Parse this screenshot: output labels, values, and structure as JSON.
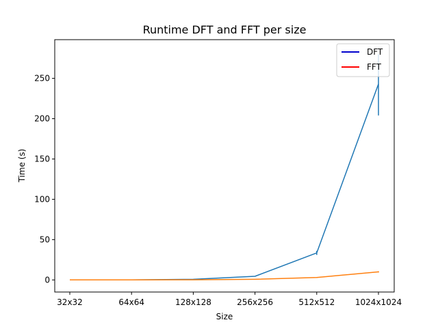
{
  "chart_data": {
    "type": "line",
    "title": "Runtime DFT and FFT per size",
    "xlabel": "Size",
    "ylabel": "Time (s)",
    "categories": [
      "32x32",
      "64x64",
      "128x128",
      "256x256",
      "512x512",
      "1024x1024"
    ],
    "ylim": [
      -15,
      298
    ],
    "yticks": [
      0,
      50,
      100,
      150,
      200,
      250
    ],
    "grid": false,
    "legend_position": "top-right",
    "legend": [
      {
        "label": "DFT",
        "color": "#0000cc"
      },
      {
        "label": "FFT",
        "color": "#ff0000"
      }
    ],
    "series": [
      {
        "name": "DFT",
        "color": "#1f77b4",
        "values": [
          0.02,
          0.1,
          0.8,
          4.5,
          33.5,
          243
        ],
        "error_low": [
          0.02,
          0.1,
          0.8,
          4.5,
          31,
          204
        ],
        "error_high": [
          0.02,
          0.1,
          0.8,
          4.5,
          36,
          280
        ]
      },
      {
        "name": "FFT",
        "color": "#ff7f0e",
        "values": [
          0.01,
          0.05,
          0.2,
          0.8,
          3.0,
          10.0
        ],
        "error_low": [
          0.01,
          0.05,
          0.2,
          0.8,
          2.6,
          9.2
        ],
        "error_high": [
          0.01,
          0.05,
          0.2,
          0.8,
          3.4,
          10.8
        ]
      }
    ]
  }
}
